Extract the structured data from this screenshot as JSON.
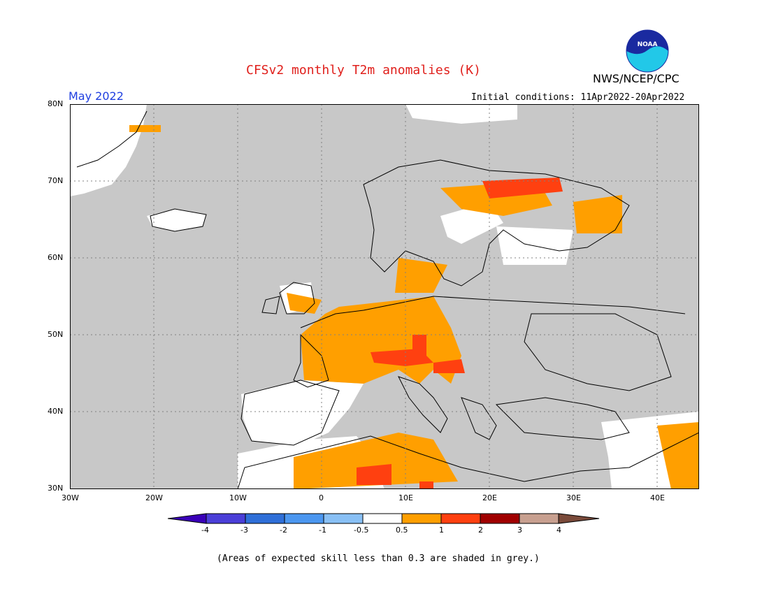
{
  "header": {
    "title": "CFSv2 monthly T2m anomalies (K)",
    "center": "NWS/NCEP/CPC",
    "logo_text": "NOAA",
    "month": "May 2022",
    "initial_conditions": "Initial conditions: 11Apr2022-20Apr2022"
  },
  "map": {
    "lat_labels": [
      "80N",
      "70N",
      "60N",
      "50N",
      "40N",
      "30N"
    ],
    "lon_labels": [
      "30W",
      "20W",
      "10W",
      "0",
      "10E",
      "20E",
      "30E",
      "40E"
    ],
    "colors": {
      "skill_grey": "#c8c8c8",
      "anom_0.5_1": "#ff9f00",
      "anom_1_2": "#ff4010",
      "land_white": "#ffffff"
    }
  },
  "colorbar": {
    "labels": [
      "-4",
      "-3",
      "-2",
      "-1",
      "-0.5",
      "0.5",
      "1",
      "2",
      "3",
      "4"
    ],
    "colors": [
      "#3a00b8",
      "#4b3fd8",
      "#2f6fd8",
      "#4c97f0",
      "#89c0f5",
      "#ffffff",
      "#ff9f00",
      "#ff4010",
      "#a00000",
      "#c8a090",
      "#7a4a3a"
    ]
  },
  "footnote": "(Areas of expected skill less than 0.3 are shaded in grey.)"
}
